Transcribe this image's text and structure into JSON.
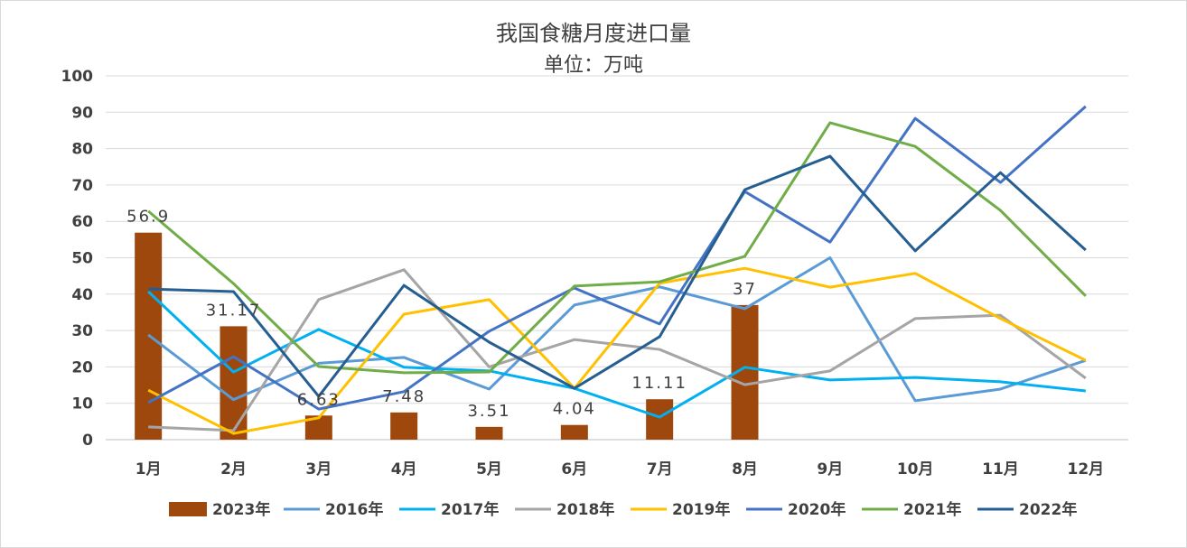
{
  "chart_data": {
    "type": "bar+line",
    "title": "我国食糖月度进口量",
    "subtitle": "单位：万吨",
    "xlabel": "",
    "ylabel": "",
    "ylim": [
      0,
      100
    ],
    "yticks": [
      0,
      10,
      20,
      30,
      40,
      50,
      60,
      70,
      80,
      90,
      100
    ],
    "grid": true,
    "legend_position": "bottom",
    "categories": [
      "1月",
      "2月",
      "3月",
      "4月",
      "5月",
      "6月",
      "7月",
      "8月",
      "9月",
      "10月",
      "11月",
      "12月"
    ],
    "bar_series": {
      "name": "2023年",
      "color": "#9e480e",
      "values": [
        56.9,
        31.17,
        6.63,
        7.48,
        3.51,
        4.04,
        11.11,
        37
      ],
      "labels": [
        "56.9",
        "31.17",
        "6.63",
        "7.48",
        "3.51",
        "4.04",
        "11.11",
        "37"
      ]
    },
    "series": [
      {
        "name": "2016年",
        "color": "#5b9bd5",
        "values": [
          28.8,
          11,
          21,
          22.6,
          13.9,
          37,
          42,
          36,
          50,
          10.7,
          13.9,
          21.8
        ]
      },
      {
        "name": "2017年",
        "color": "#00b0f0",
        "values": [
          40.7,
          18.6,
          30.3,
          19.9,
          18.9,
          14.1,
          6.2,
          19.9,
          16.4,
          17.1,
          15.9,
          13.4
        ]
      },
      {
        "name": "2018年",
        "color": "#a5a5a5",
        "values": [
          3.5,
          2.5,
          38.5,
          46.7,
          20,
          27.5,
          24.8,
          15.1,
          18.9,
          33.3,
          34.2,
          16.9
        ]
      },
      {
        "name": "2019年",
        "color": "#ffc000",
        "values": [
          13.6,
          1.7,
          6,
          34.5,
          38.5,
          14.1,
          43,
          47.1,
          41.9,
          45.7,
          33.3,
          21.8
        ]
      },
      {
        "name": "2020年",
        "color": "#4472c4",
        "values": [
          10.2,
          22.8,
          8.4,
          13.2,
          29.8,
          41.7,
          31.8,
          68.2,
          54.3,
          88.3,
          70.7,
          91.6
        ]
      },
      {
        "name": "2021年",
        "color": "#70ad47",
        "values": [
          62.8,
          42.9,
          20.1,
          18.4,
          18.6,
          42.2,
          43.4,
          50.4,
          87.1,
          80.6,
          63,
          39.5
        ]
      },
      {
        "name": "2022年",
        "color": "#255e91",
        "values": [
          41.4,
          40.7,
          11.9,
          42.4,
          26.8,
          14.1,
          28.3,
          68.7,
          77.9,
          51.9,
          73.4,
          52.1
        ]
      }
    ]
  }
}
